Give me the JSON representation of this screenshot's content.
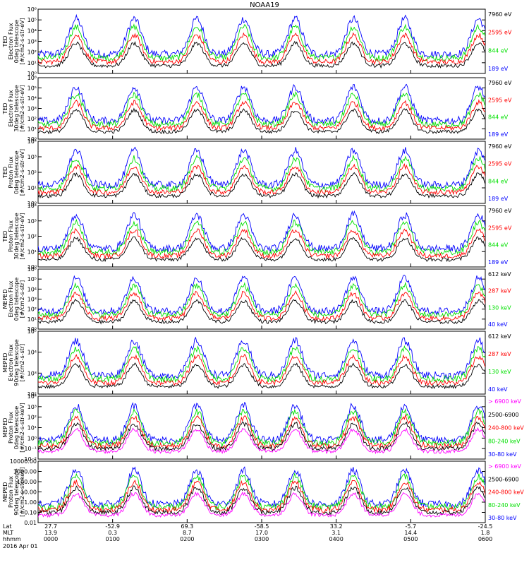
{
  "title": "NOAA19",
  "date": "2016 Apr 01",
  "colors": {
    "blue": "#0000ff",
    "red": "#ff0000",
    "green": "#00e000",
    "black": "#000000",
    "magenta": "#ff00ff"
  },
  "footer": {
    "row_labels": [
      "Lat",
      "MLT",
      "hhmm"
    ],
    "ticks": [
      {
        "lat": "27.7",
        "mlt": "13.9",
        "hhmm": "0000"
      },
      {
        "lat": "-52.9",
        "mlt": "0.3",
        "hhmm": "0100"
      },
      {
        "lat": "69.3",
        "mlt": "8.7",
        "hhmm": "0200"
      },
      {
        "lat": "-58.5",
        "mlt": "17.0",
        "hhmm": "0300"
      },
      {
        "lat": "33.2",
        "mlt": "3.1",
        "hhmm": "0400"
      },
      {
        "lat": "-5.7",
        "mlt": "14.4",
        "hhmm": "0500"
      },
      {
        "lat": "-24.5",
        "mlt": "1.8",
        "hhmm": "0600"
      }
    ]
  },
  "chart_data": [
    {
      "type": "line",
      "ylabel": [
        "TED",
        "Electron Flux",
        "0deg telescope",
        "[#/cm2-s-str-eV]"
      ],
      "yticks": [
        "10⁰",
        "10¹",
        "10²",
        "10³",
        "10⁴",
        "10⁵",
        "10⁶"
      ],
      "series": [
        {
          "name": "7960 eV",
          "color": "#000000"
        },
        {
          "name": "2595 eV",
          "color": "#ff0000"
        },
        {
          "name": "844 eV",
          "color": "#00e000"
        },
        {
          "name": "189 eV",
          "color": "#0000ff"
        }
      ]
    },
    {
      "type": "line",
      "ylabel": [
        "TED",
        "Electron Flux",
        "30deg telescope",
        "[#/cm2-s-str-eV]"
      ],
      "yticks": [
        "10⁰",
        "10¹",
        "10²",
        "10³",
        "10⁴",
        "10⁵",
        "10⁶"
      ],
      "series": [
        {
          "name": "7960 eV",
          "color": "#000000"
        },
        {
          "name": "2595 eV",
          "color": "#ff0000"
        },
        {
          "name": "844 eV",
          "color": "#00e000"
        },
        {
          "name": "189 eV",
          "color": "#0000ff"
        }
      ]
    },
    {
      "type": "line",
      "ylabel": [
        "TED",
        "Proton Flux",
        "0deg telescope",
        "[#/cm2-s-str-eV]"
      ],
      "yticks": [
        "10⁰",
        "10¹",
        "10²",
        "10³",
        "10⁴"
      ],
      "series": [
        {
          "name": "7960 eV",
          "color": "#000000"
        },
        {
          "name": "2595 eV",
          "color": "#ff0000"
        },
        {
          "name": "844 eV",
          "color": "#00e000"
        },
        {
          "name": "189 eV",
          "color": "#0000ff"
        }
      ]
    },
    {
      "type": "line",
      "ylabel": [
        "TED",
        "Proton Flux",
        "30deg telescope",
        "[#/cm2-s-str-eV]"
      ],
      "yticks": [
        "10⁰",
        "10¹",
        "10²",
        "10³",
        "10⁴"
      ],
      "series": [
        {
          "name": "7960 eV",
          "color": "#000000"
        },
        {
          "name": "2595 eV",
          "color": "#ff0000"
        },
        {
          "name": "844 eV",
          "color": "#00e000"
        },
        {
          "name": "189 eV",
          "color": "#0000ff"
        }
      ]
    },
    {
      "type": "line",
      "ylabel": [
        "MEPED",
        "Electron Flux",
        "0deg telescope",
        "[#/cm2-s-str]"
      ],
      "yticks": [
        "10⁰",
        "10¹",
        "10²",
        "10³",
        "10⁴",
        "10⁵",
        "10⁶"
      ],
      "series": [
        {
          "name": "612 keV",
          "color": "#000000"
        },
        {
          "name": "287 keV",
          "color": "#ff0000"
        },
        {
          "name": "130 keV",
          "color": "#00e000"
        },
        {
          "name": "40 keV",
          "color": "#0000ff"
        }
      ]
    },
    {
      "type": "line",
      "ylabel": [
        "MEPED",
        "Electron Flux",
        "90deg telescope",
        "[#/cm2-s-str]"
      ],
      "yticks": [
        "10²",
        "10³",
        "10⁴",
        "10⁵"
      ],
      "series": [
        {
          "name": "612 keV",
          "color": "#000000"
        },
        {
          "name": "287 keV",
          "color": "#ff0000"
        },
        {
          "name": "130 keV",
          "color": "#00e000"
        },
        {
          "name": "40 keV",
          "color": "#0000ff"
        }
      ]
    },
    {
      "type": "line",
      "ylabel": [
        "MEPED",
        "Proton Flux",
        "0deg telescope",
        "[#/cm2-s-str-keV]"
      ],
      "yticks": [
        "10⁻²",
        "10⁻¹",
        "10⁰",
        "10¹",
        "10²",
        "10³",
        "10⁴"
      ],
      "series": [
        {
          "name": "> 6900 keV",
          "color": "#ff00ff"
        },
        {
          "name": "2500-6900",
          "color": "#000000"
        },
        {
          "name": "240-800 keV",
          "color": "#ff0000"
        },
        {
          "name": "80-240 keV",
          "color": "#00e000"
        },
        {
          "name": "30-80 keV",
          "color": "#0000ff"
        }
      ]
    },
    {
      "type": "line",
      "ylabel": [
        "MEPED",
        "Proton Flux",
        "90deg telescope",
        "[#/cm2-s-str-keV]"
      ],
      "yticks": [
        "0.01",
        "0.10",
        "1.00",
        "10.00",
        "100.00",
        "1000.00",
        "10000.00"
      ],
      "series": [
        {
          "name": "> 6900 keV",
          "color": "#ff00ff"
        },
        {
          "name": "2500-6900",
          "color": "#000000"
        },
        {
          "name": "240-800 keV",
          "color": "#ff0000"
        },
        {
          "name": "80-240 keV",
          "color": "#00e000"
        },
        {
          "name": "30-80 keV",
          "color": "#0000ff"
        }
      ]
    }
  ]
}
